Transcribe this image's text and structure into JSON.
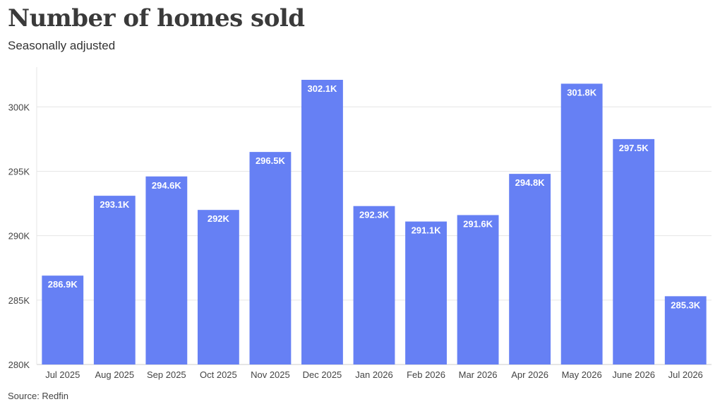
{
  "title": "Number of homes sold",
  "subtitle": "Seasonally adjusted",
  "source": "Source: Redfin",
  "colors": {
    "bar": "#6680f4",
    "grid": "#e6e6e6",
    "axis": "#cccccc"
  },
  "chart_data": {
    "type": "bar",
    "categories": [
      "Jul 2025",
      "Aug 2025",
      "Sep 2025",
      "Oct 2025",
      "Nov 2025",
      "Dec 2025",
      "Jan 2026",
      "Feb 2026",
      "Mar 2026",
      "Apr 2026",
      "May 2026",
      "June 2026",
      "Jul 2026"
    ],
    "values": [
      286.9,
      293.1,
      294.6,
      292.0,
      296.5,
      302.1,
      292.3,
      291.1,
      291.6,
      294.8,
      301.8,
      297.5,
      285.3
    ],
    "data_labels": [
      "286.9K",
      "293.1K",
      "294.6K",
      "292K",
      "296.5K",
      "302.1K",
      "292.3K",
      "291.1K",
      "291.6K",
      "294.8K",
      "301.8K",
      "297.5K",
      "285.3K"
    ],
    "yticks": [
      280,
      285,
      290,
      295,
      300
    ],
    "ytick_labels": [
      "280K",
      "285K",
      "290K",
      "295K",
      "300K"
    ],
    "ylim": [
      280,
      302.1
    ],
    "grid": true,
    "legend": "none"
  }
}
